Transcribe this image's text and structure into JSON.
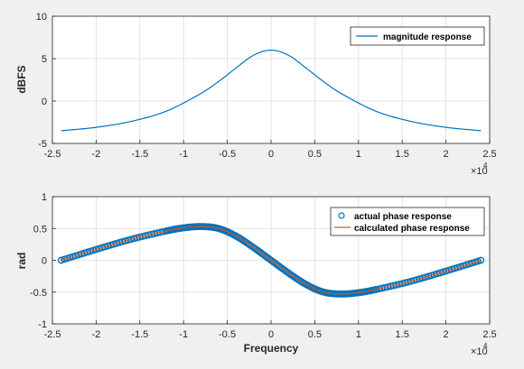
{
  "chart_data": [
    {
      "type": "line",
      "title": "",
      "xlabel": "",
      "ylabel": "dBFS",
      "xlim": [
        -24000,
        24000
      ],
      "ylim": [
        -5,
        10
      ],
      "x_ticks": [
        "-2.5",
        "-2",
        "-1.5",
        "-1",
        "-0.5",
        "0",
        "0.5",
        "1",
        "1.5",
        "2",
        "2.5"
      ],
      "y_ticks": [
        "-5",
        "0",
        "5",
        "10"
      ],
      "x_exponent_label": "×10",
      "x_exponent": "4",
      "grid": true,
      "legend": "top-right",
      "series": [
        {
          "name": "magnitude response",
          "color": "#0072BD",
          "x": [
            -24000,
            -20000,
            -16000,
            -12000,
            -8000,
            -6000,
            -4000,
            -2000,
            0,
            2000,
            4000,
            6000,
            8000,
            12000,
            16000,
            20000,
            24000
          ],
          "y": [
            -3.5,
            -3.1,
            -2.4,
            -1.2,
            0.9,
            2.3,
            3.9,
            5.4,
            6.0,
            5.4,
            3.9,
            2.3,
            0.9,
            -1.2,
            -2.4,
            -3.1,
            -3.5
          ]
        }
      ]
    },
    {
      "type": "line",
      "title": "",
      "xlabel": "Frequency",
      "ylabel": "rad",
      "xlim": [
        -24000,
        24000
      ],
      "ylim": [
        -1,
        1
      ],
      "x_ticks": [
        "-2.5",
        "-2",
        "-1.5",
        "-1",
        "-0.5",
        "0",
        "0.5",
        "1",
        "1.5",
        "2",
        "2.5"
      ],
      "y_ticks": [
        "-1",
        "-0.5",
        "0",
        "0.5",
        "1"
      ],
      "x_exponent_label": "×10",
      "x_exponent": "4",
      "grid": true,
      "legend": "top-right",
      "series": [
        {
          "name": "actual phase response",
          "color": "#0072BD",
          "marker": "circle",
          "x": [
            -24000,
            -20000,
            -16000,
            -12000,
            -10000,
            -8000,
            -6000,
            -4000,
            -2000,
            0,
            2000,
            4000,
            6000,
            8000,
            10000,
            12000,
            16000,
            20000,
            24000
          ],
          "y": [
            0,
            0.17,
            0.33,
            0.46,
            0.51,
            0.53,
            0.5,
            0.38,
            0.2,
            0,
            -0.2,
            -0.38,
            -0.5,
            -0.53,
            -0.51,
            -0.46,
            -0.33,
            -0.17,
            0
          ]
        },
        {
          "name": "calculated phase response",
          "color": "#D95319",
          "x": [
            -24000,
            -20000,
            -16000,
            -12000,
            -10000,
            -8000,
            -6000,
            -4000,
            -2000,
            0,
            2000,
            4000,
            6000,
            8000,
            10000,
            12000,
            16000,
            20000,
            24000
          ],
          "y": [
            0,
            0.17,
            0.33,
            0.46,
            0.51,
            0.53,
            0.5,
            0.38,
            0.2,
            0,
            -0.2,
            -0.38,
            -0.5,
            -0.53,
            -0.51,
            -0.46,
            -0.33,
            -0.17,
            0
          ]
        }
      ]
    }
  ]
}
